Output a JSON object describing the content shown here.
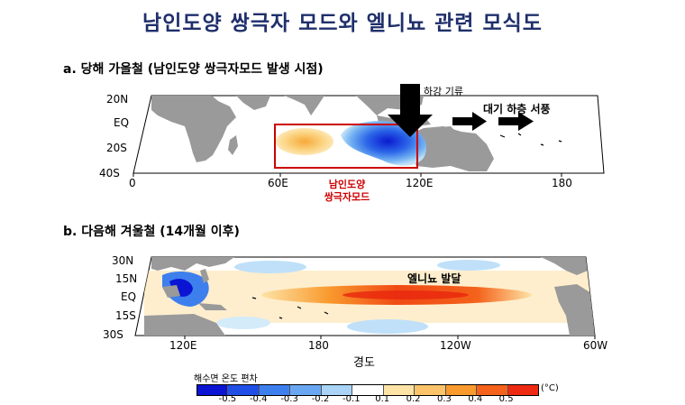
{
  "title": "남인도양 쌍극자 모드와 엘니뇨 관련 모식도",
  "panel_a": {
    "title": "a. 당해 가을철 (남인도양 쌍극자모드 발생 시점)",
    "lat_labels": [
      "20N",
      "EQ",
      "20S",
      "40S"
    ],
    "lon_labels": [
      "0",
      "60E",
      "120E",
      "180"
    ],
    "downdraft_label": "하강 기류",
    "westerly_label": "대기 하층 서풍",
    "box_label_line1": "남인도양",
    "box_label_line2": "쌍극자모드",
    "box_color": "#cc0000"
  },
  "panel_b": {
    "title": "b. 다음해 겨울철 (14개월 이후)",
    "lat_labels": [
      "30N",
      "15N",
      "EQ",
      "15S",
      "30S"
    ],
    "lon_labels": [
      "120E",
      "180",
      "120W",
      "60W"
    ],
    "elnino_label": "엘니뇨 발달",
    "xlabel": "경도"
  },
  "colorbar": {
    "title": "해수면 온도 편차",
    "unit": "(°C)",
    "ticks": [
      "-0.5",
      "-0.4",
      "-0.3",
      "-0.2",
      "-0.1",
      "0.1",
      "0.2",
      "0.3",
      "0.4",
      "0.5"
    ],
    "colors": [
      "#0a14d2",
      "#1f4fe6",
      "#3e7fee",
      "#6aa7f2",
      "#a9d3f7",
      "#ffffff",
      "#fde3a6",
      "#fbc46a",
      "#f99a2e",
      "#f4621b",
      "#ee2a12"
    ]
  }
}
